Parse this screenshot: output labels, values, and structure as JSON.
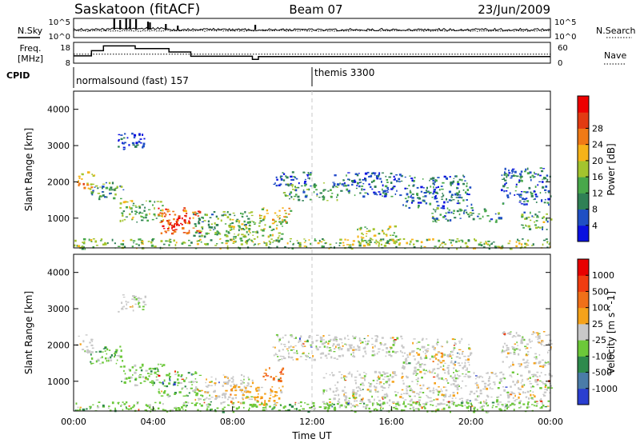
{
  "header": {
    "station": "Saskatoon (fitACF)",
    "beam": "Beam 07",
    "date": "23/Jun/2009"
  },
  "strip_labels": {
    "nsky": "N.Sky",
    "freq_line1": "Freq.",
    "freq_line2": "[MHz]",
    "cpid": "CPID",
    "nsearch": "N.Search",
    "nave": "Nave"
  },
  "cpid_modes": [
    {
      "label": "normalsound (fast) 157",
      "start_hour": 0
    },
    {
      "label": "themis 3300",
      "start_hour": 12
    }
  ],
  "chart_data": [
    {
      "type": "line",
      "panel": "noise",
      "series": [
        {
          "name": "N.Sky",
          "style": "solid"
        },
        {
          "name": "N.Search",
          "style": "dotted"
        }
      ],
      "ytick_labels_left": [
        "10^5",
        "10^0"
      ],
      "ytick_labels_right": [
        "10^5",
        "10^0"
      ],
      "xlim": [
        0,
        24
      ]
    },
    {
      "type": "line",
      "panel": "frequency-nave",
      "x": [
        0,
        0.9,
        0.9,
        1.5,
        1.5,
        3.1,
        3.1,
        4.8,
        4.8,
        5.9,
        5.9,
        9.0,
        9.0,
        9.3,
        9.3,
        24
      ],
      "freq_mhz": [
        11.5,
        11.5,
        14,
        14,
        16.3,
        16.3,
        15,
        15,
        13.4,
        13.4,
        11.3,
        11.3,
        9.8,
        9.8,
        11.2,
        11.2
      ],
      "nave_level": 26,
      "ytick_labels_left": [
        "18",
        "8"
      ],
      "ytick_labels_right": [
        "60",
        "0"
      ],
      "ylim_left": [
        8,
        18
      ],
      "ylim_right": [
        0,
        60
      ],
      "xlim": [
        0,
        24
      ]
    },
    {
      "type": "heatmap",
      "panel": "power",
      "ylabel": "Slant Range [km]",
      "ylim": [
        180,
        4500
      ],
      "yticks": [
        1000,
        2000,
        3000,
        4000
      ],
      "xlim": [
        0,
        24
      ],
      "colorbar": {
        "label": "Power [dB]",
        "range": [
          0,
          32
        ],
        "ticks": [
          "4",
          "8",
          "12",
          "16",
          "20",
          "24",
          "28"
        ],
        "colors": [
          "#0a10e0",
          "#1f4fc4",
          "#2f8055",
          "#48a84a",
          "#a3c42e",
          "#f6b318",
          "#f07a16",
          "#e23b12",
          "#ee0000"
        ]
      },
      "echo_regions": [
        {
          "x": [
            0.1,
            1.0
          ],
          "y": [
            1800,
            2300
          ],
          "level": 20
        },
        {
          "x": [
            0.8,
            2.5
          ],
          "y": [
            1500,
            2000
          ],
          "level": 10
        },
        {
          "x": [
            2.3,
            4.5
          ],
          "y": [
            900,
            1500
          ],
          "level": 14
        },
        {
          "x": [
            4.2,
            6.3
          ],
          "y": [
            600,
            1300
          ],
          "level": 25
        },
        {
          "x": [
            4.7,
            5.6
          ],
          "y": [
            700,
            1150
          ],
          "level": 30
        },
        {
          "x": [
            6.0,
            9.0
          ],
          "y": [
            500,
            1200
          ],
          "level": 12
        },
        {
          "x": [
            7.8,
            10.5
          ],
          "y": [
            350,
            1000
          ],
          "level": 15
        },
        {
          "x": [
            9.3,
            10.9
          ],
          "y": [
            900,
            1300
          ],
          "level": 18
        },
        {
          "x": [
            10.0,
            12.0
          ],
          "y": [
            1900,
            2300
          ],
          "level": 6
        },
        {
          "x": [
            10.5,
            13.5
          ],
          "y": [
            1500,
            2000
          ],
          "level": 10
        },
        {
          "x": [
            13.0,
            16.5
          ],
          "y": [
            1600,
            2300
          ],
          "level": 6
        },
        {
          "x": [
            14.2,
            16.4
          ],
          "y": [
            300,
            800
          ],
          "level": 16
        },
        {
          "x": [
            16.5,
            20.0
          ],
          "y": [
            1300,
            2200
          ],
          "level": 8
        },
        {
          "x": [
            18.0,
            21.5
          ],
          "y": [
            900,
            1300
          ],
          "level": 9
        },
        {
          "x": [
            21.5,
            24.0
          ],
          "y": [
            1400,
            2400
          ],
          "level": 7
        },
        {
          "x": [
            22.5,
            24.0
          ],
          "y": [
            700,
            1200
          ],
          "level": 12
        },
        {
          "x": [
            2.2,
            3.6
          ],
          "y": [
            2900,
            3400
          ],
          "level": 4
        },
        {
          "x": [
            0.0,
            24.0
          ],
          "y": [
            180,
            450
          ],
          "level": 14
        }
      ]
    },
    {
      "type": "heatmap",
      "panel": "velocity",
      "ylabel": "Slant Range [km]",
      "xlabel": "Time UT",
      "ylim": [
        180,
        4500
      ],
      "yticks": [
        1000,
        2000,
        3000,
        4000
      ],
      "xticks": [
        "00:00",
        "04:00",
        "08:00",
        "12:00",
        "16:00",
        "20:00",
        "00:00"
      ],
      "xlim": [
        0,
        24
      ],
      "colorbar": {
        "label": "Velocity [m s^-1]",
        "ticks": [
          "1000",
          "500",
          "100",
          "25",
          "-25",
          "-100",
          "-500",
          "-1000"
        ],
        "colors": [
          "#2a3ed0",
          "#4a7ca8",
          "#2e8a4c",
          "#6cc83a",
          "#c8c8c8",
          "#f5a21a",
          "#f07018",
          "#f03c10",
          "#e80000"
        ]
      },
      "echo_regions": [
        {
          "x": [
            0.1,
            1.0
          ],
          "y": [
            1800,
            2300
          ],
          "class": 4
        },
        {
          "x": [
            0.8,
            2.5
          ],
          "y": [
            1500,
            2000
          ],
          "class": 3
        },
        {
          "x": [
            2.3,
            4.5
          ],
          "y": [
            900,
            1500
          ],
          "class": 3
        },
        {
          "x": [
            4.2,
            6.3
          ],
          "y": [
            600,
            1300
          ],
          "class": 3
        },
        {
          "x": [
            2.2,
            3.6
          ],
          "y": [
            2900,
            3400
          ],
          "class": 4
        },
        {
          "x": [
            6.0,
            9.0
          ],
          "y": [
            500,
            1200
          ],
          "class": 4
        },
        {
          "x": [
            9.5,
            10.6
          ],
          "y": [
            1000,
            1400
          ],
          "class": 6
        },
        {
          "x": [
            7.8,
            10.5
          ],
          "y": [
            350,
            900
          ],
          "class": 5
        },
        {
          "x": [
            10.0,
            13.5
          ],
          "y": [
            1600,
            2300
          ],
          "class": 4
        },
        {
          "x": [
            13.0,
            16.5
          ],
          "y": [
            1700,
            2300
          ],
          "class": 4
        },
        {
          "x": [
            12.5,
            24.0
          ],
          "y": [
            300,
            1300
          ],
          "class": 4
        },
        {
          "x": [
            16.5,
            20.0
          ],
          "y": [
            1300,
            2200
          ],
          "class": 4
        },
        {
          "x": [
            18.0,
            18.7
          ],
          "y": [
            1500,
            1800
          ],
          "class": 5
        },
        {
          "x": [
            21.5,
            24.0
          ],
          "y": [
            1400,
            2400
          ],
          "class": 4
        },
        {
          "x": [
            0.0,
            24.0
          ],
          "y": [
            180,
            450
          ],
          "class": 3
        }
      ]
    }
  ]
}
